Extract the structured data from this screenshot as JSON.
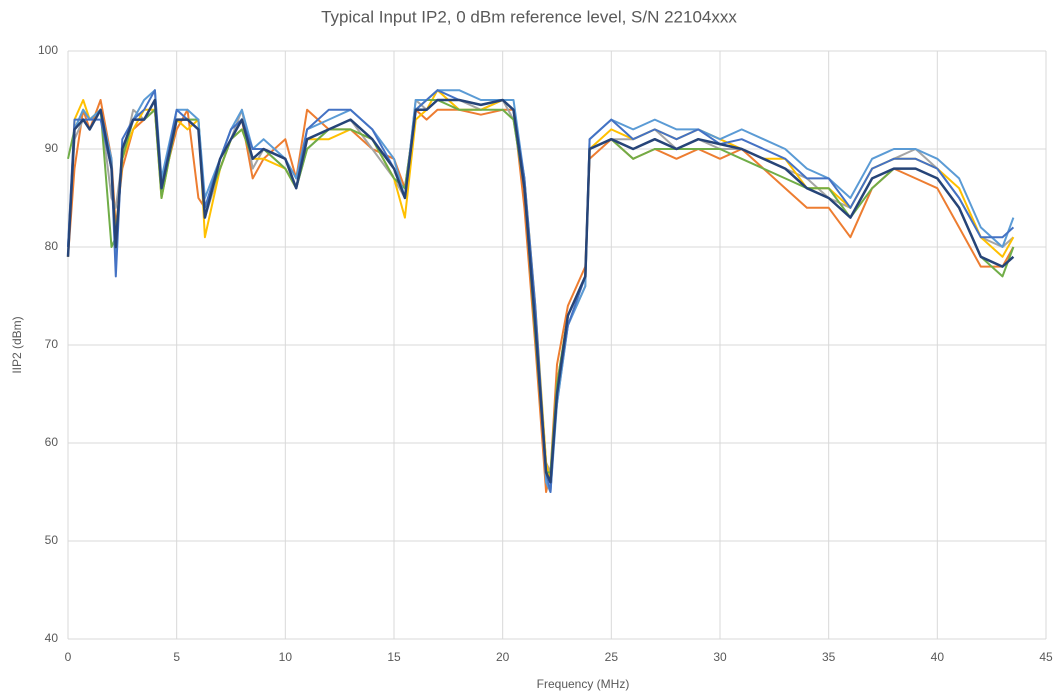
{
  "chart_data": {
    "type": "line",
    "title": "Typical Input IP2, 0 dBm reference level, S/N 22104xxx",
    "xlabel": "Frequency (MHz)",
    "ylabel": "IIP2 (dBm)",
    "xlim": [
      0,
      45
    ],
    "xticks": [
      0,
      5,
      10,
      15,
      20,
      25,
      30,
      35,
      40,
      45
    ],
    "ylim": [
      40,
      100
    ],
    "yticks": [
      40,
      50,
      60,
      70,
      80,
      90,
      100
    ],
    "grid": true,
    "x": [
      0,
      0.3,
      0.7,
      1,
      1.5,
      2,
      2.2,
      2.5,
      3,
      3.5,
      4,
      4.3,
      5,
      5.5,
      6,
      6.3,
      7,
      7.5,
      8,
      8.5,
      9,
      10,
      10.5,
      11,
      12,
      13,
      14,
      15,
      15.5,
      16,
      16.5,
      17,
      18,
      19,
      20,
      20.5,
      21,
      21.5,
      22,
      22.2,
      22.5,
      23,
      23.8,
      24,
      25,
      26,
      27,
      28,
      29,
      30,
      31,
      32,
      33,
      34,
      35,
      36,
      37,
      38,
      39,
      40,
      41,
      42,
      43,
      43.5
    ],
    "series": [
      {
        "color": "#ED7D31",
        "values": [
          79,
          88,
          94,
          92,
          95,
          89,
          82,
          88,
          92,
          93,
          94,
          86,
          92,
          94,
          85,
          84,
          88,
          91,
          93,
          87,
          89,
          91,
          87,
          94,
          92,
          92,
          90,
          89,
          86,
          94,
          93,
          94,
          94,
          93.5,
          94,
          94,
          84,
          70,
          55,
          57,
          68,
          74,
          78,
          89,
          91,
          89,
          90,
          89,
          90,
          89,
          90,
          88,
          86,
          84,
          84,
          81,
          86,
          88,
          87,
          86,
          82,
          78,
          78,
          80
        ]
      },
      {
        "color": "#A5A5A5",
        "values": [
          80,
          91,
          93,
          92,
          94,
          85,
          84,
          89,
          94,
          93,
          94,
          86,
          93,
          93,
          93,
          83,
          88,
          91,
          94,
          88,
          90,
          88,
          86,
          90,
          92,
          93,
          90,
          87,
          85,
          95,
          94,
          95,
          95,
          94,
          95,
          93,
          86,
          73,
          58,
          57,
          64,
          72,
          76,
          90,
          91,
          91,
          92,
          90,
          91,
          90,
          90,
          89,
          88,
          87,
          85,
          84,
          88,
          89,
          90,
          88,
          85,
          81,
          80,
          81
        ]
      },
      {
        "color": "#FFC000",
        "values": [
          79,
          93,
          95,
          93,
          94,
          88,
          81,
          89,
          92,
          94,
          94,
          85,
          93,
          92,
          93,
          81,
          88,
          91,
          92,
          89,
          89,
          88,
          86,
          91,
          91,
          92,
          91,
          87,
          83,
          93,
          94,
          96,
          94,
          94,
          95,
          94,
          87,
          74,
          58,
          56,
          66,
          73,
          77,
          90,
          92,
          91,
          92,
          91,
          92,
          91,
          90,
          89,
          89,
          86,
          86,
          84,
          88,
          89,
          89,
          88,
          86,
          81,
          79,
          81
        ]
      },
      {
        "color": "#70AD47",
        "values": [
          89,
          92,
          94,
          93,
          94,
          80,
          81,
          89,
          93,
          93,
          94,
          85,
          93,
          93,
          93,
          84,
          88,
          91,
          92,
          89,
          90,
          88,
          86,
          90,
          92,
          92,
          91,
          87,
          86,
          94,
          95,
          95,
          94,
          94,
          94,
          93,
          86,
          71,
          57,
          57,
          66,
          73,
          77,
          90,
          91,
          89,
          90,
          90,
          90,
          90,
          89,
          88,
          87,
          86,
          86,
          83,
          86,
          88,
          88,
          87,
          84,
          79,
          77,
          80
        ]
      },
      {
        "color": "#5B9BD5",
        "values": [
          80,
          92,
          94,
          93,
          94,
          89,
          79,
          90,
          93,
          95,
          96,
          87,
          94,
          94,
          93,
          85,
          89,
          92,
          94,
          90,
          91,
          89,
          87,
          92,
          93,
          94,
          92,
          89,
          85,
          95,
          95,
          96,
          96,
          95,
          95,
          95,
          87,
          73,
          56,
          55,
          64,
          72,
          76,
          91,
          93,
          92,
          93,
          92,
          92,
          91,
          92,
          91,
          90,
          88,
          87,
          85,
          89,
          90,
          90,
          89,
          87,
          82,
          80,
          83
        ]
      },
      {
        "color": "#4472C4",
        "values": [
          80,
          93,
          93,
          93,
          93,
          88,
          77,
          91,
          93,
          94,
          96,
          86,
          94,
          93,
          92,
          84,
          89,
          92,
          93,
          90,
          90,
          89,
          86,
          92,
          94,
          94,
          92,
          88,
          85,
          94,
          95,
          96,
          95,
          94.5,
          95,
          94,
          87,
          74,
          57,
          55,
          65,
          72,
          77,
          91,
          93,
          91,
          92,
          91,
          92,
          90.5,
          91,
          90,
          89,
          87,
          87,
          84,
          88,
          89,
          89,
          88,
          85,
          81,
          81,
          82
        ]
      },
      {
        "color": "#264478",
        "values": [
          79,
          92,
          93,
          92,
          94,
          88,
          80,
          90,
          93,
          93,
          95,
          86,
          93,
          93,
          92,
          83,
          89,
          91,
          93,
          89,
          90,
          89,
          86,
          91,
          92,
          93,
          91,
          88,
          85,
          94,
          94,
          95,
          95,
          94.5,
          95,
          94,
          86,
          72,
          57,
          56,
          65,
          73,
          77,
          90,
          91,
          90,
          91,
          90,
          91,
          90.5,
          90,
          89,
          88,
          86,
          85,
          83,
          87,
          88,
          88,
          87,
          84,
          79,
          78,
          79
        ]
      }
    ]
  }
}
